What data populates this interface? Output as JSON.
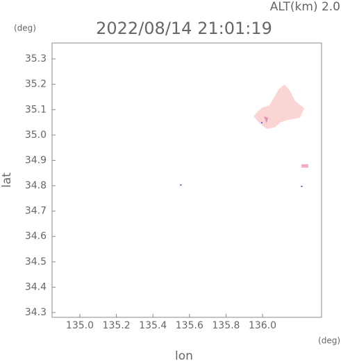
{
  "chart_data": {
    "type": "map",
    "title": "2022/08/14 21:01:19",
    "annotation": "ALT(km) 2.0",
    "x_label": "lon",
    "y_label": "lat",
    "x_unit": "(deg)",
    "y_unit": "(deg)",
    "xlim": [
      134.848,
      136.323
    ],
    "ylim": [
      34.281,
      35.363
    ],
    "xticks": [
      {
        "value": 135.0,
        "label": "135.0"
      },
      135.2,
      135.4,
      135.6,
      135.8,
      {
        "value": 136.0,
        "label": "136.0"
      }
    ],
    "yticks": [
      34.3,
      34.4,
      34.5,
      34.6,
      34.7,
      34.8,
      34.9,
      {
        "value": 35.0,
        "label": "35.0"
      },
      35.1,
      35.2,
      35.3
    ]
  }
}
